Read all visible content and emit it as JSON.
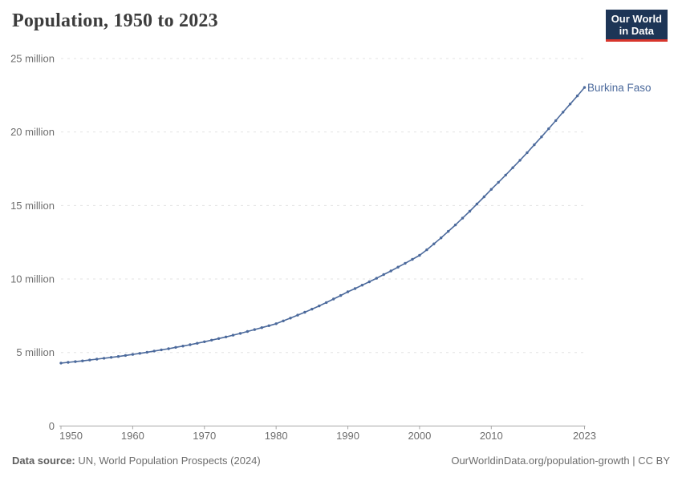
{
  "header": {
    "title": "Population, 1950 to 2023",
    "logo": {
      "line1": "Our World",
      "line2": "in Data"
    }
  },
  "chart_data": {
    "type": "line",
    "title": "Population, 1950 to 2023",
    "entity": "Burkina Faso",
    "unit_suffix": "million",
    "ylim": [
      0,
      25
    ],
    "y_ticks": [
      0,
      5,
      10,
      15,
      20,
      25
    ],
    "x_ticks": [
      1950,
      1960,
      1970,
      1980,
      1990,
      2000,
      2010,
      2023
    ],
    "grid": "horizontal-dashed",
    "legend_position": "end-of-line-label",
    "series": [
      {
        "name": "Burkina Faso",
        "color": "#4c6a9c",
        "x": [
          1950,
          1951,
          1952,
          1953,
          1954,
          1955,
          1956,
          1957,
          1958,
          1959,
          1960,
          1961,
          1962,
          1963,
          1964,
          1965,
          1966,
          1967,
          1968,
          1969,
          1970,
          1971,
          1972,
          1973,
          1974,
          1975,
          1976,
          1977,
          1978,
          1979,
          1980,
          1981,
          1982,
          1983,
          1984,
          1985,
          1986,
          1987,
          1988,
          1989,
          1990,
          1991,
          1992,
          1993,
          1994,
          1995,
          1996,
          1997,
          1998,
          1999,
          2000,
          2001,
          2002,
          2003,
          2004,
          2005,
          2006,
          2007,
          2008,
          2009,
          2010,
          2011,
          2012,
          2013,
          2014,
          2015,
          2016,
          2017,
          2018,
          2019,
          2020,
          2021,
          2022,
          2023
        ],
        "values_million": [
          4.28,
          4.33,
          4.38,
          4.43,
          4.49,
          4.55,
          4.61,
          4.67,
          4.73,
          4.8,
          4.87,
          4.94,
          5.02,
          5.1,
          5.18,
          5.26,
          5.35,
          5.44,
          5.53,
          5.63,
          5.73,
          5.84,
          5.95,
          6.06,
          6.18,
          6.3,
          6.43,
          6.56,
          6.69,
          6.82,
          6.96,
          7.15,
          7.34,
          7.54,
          7.74,
          7.95,
          8.17,
          8.4,
          8.64,
          8.88,
          9.13,
          9.35,
          9.58,
          9.81,
          10.05,
          10.3,
          10.55,
          10.81,
          11.07,
          11.34,
          11.61,
          11.99,
          12.39,
          12.8,
          13.24,
          13.68,
          14.14,
          14.61,
          15.1,
          15.59,
          16.1,
          16.58,
          17.07,
          17.57,
          18.08,
          18.6,
          19.13,
          19.67,
          20.22,
          20.78,
          21.35,
          21.9,
          22.46,
          23.03
        ]
      }
    ]
  },
  "colors": {
    "line": "#4c6a9c",
    "grid": "#e3e3e3",
    "axis": "#a7a7a7",
    "tick_text": "#6e6e6e",
    "title_text": "#3c3c3c",
    "logo_bg": "#1d3556",
    "logo_underline": "#d8352c"
  },
  "footer": {
    "source_label": "Data source:",
    "source_text": " UN, World Population Prospects (2024)",
    "rights": "OurWorldinData.org/population-growth | CC BY"
  }
}
